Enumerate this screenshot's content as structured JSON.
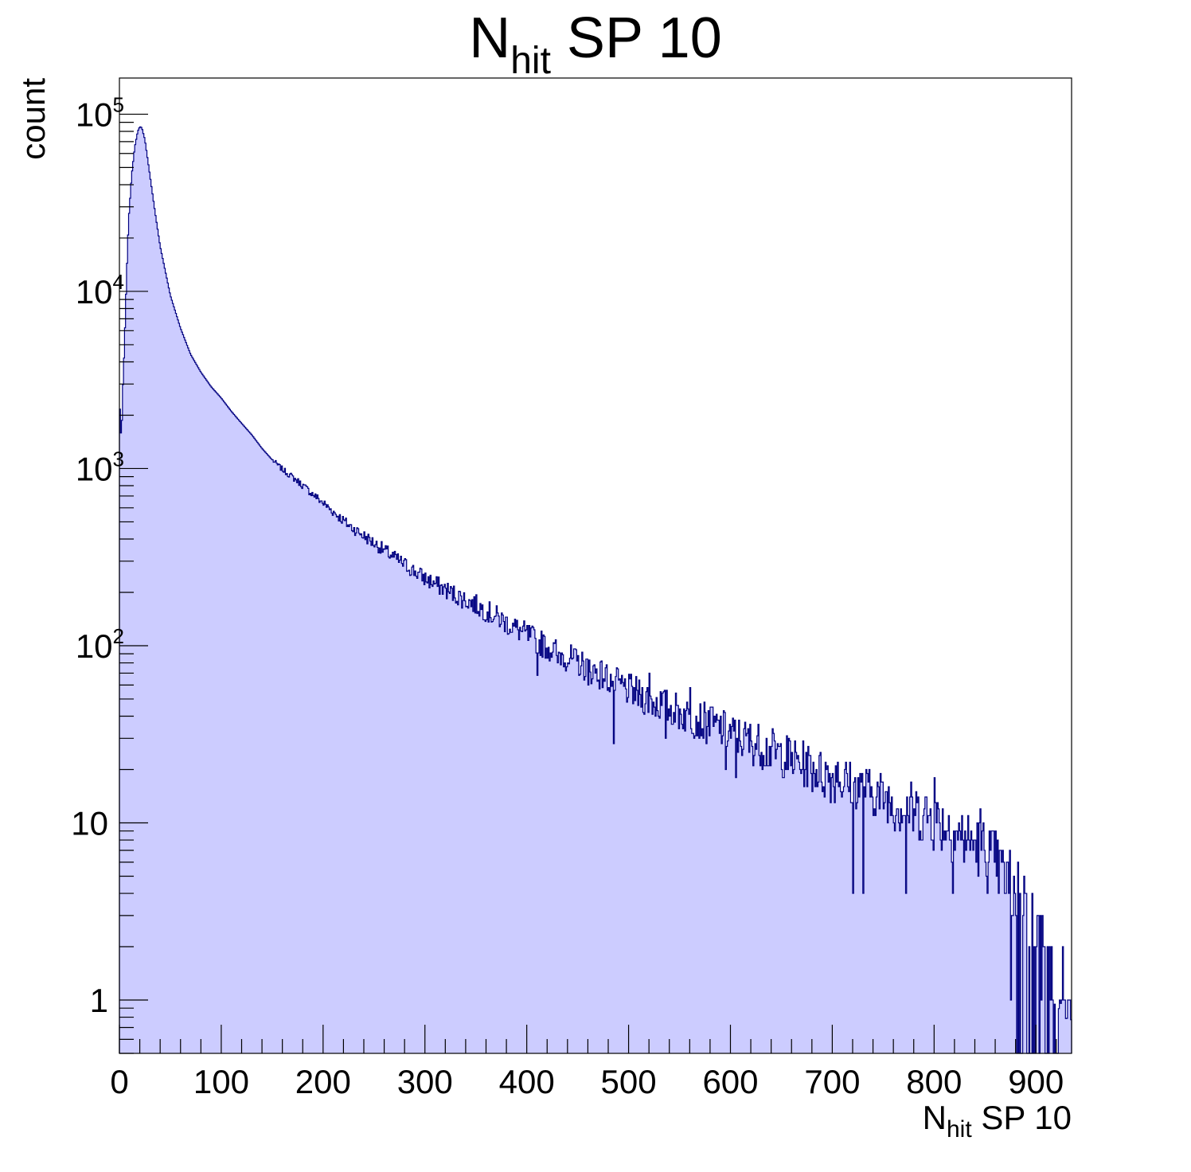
{
  "chart_data": {
    "type": "histogram",
    "title": {
      "main": "N",
      "sub": "hit",
      "rest": " SP 10"
    },
    "xlabel": {
      "main": "N",
      "sub": "hit",
      "rest": " SP 10"
    },
    "ylabel": "count",
    "xlim": [
      0,
      935
    ],
    "ylim": [
      0.5,
      160000
    ],
    "yscale": "log",
    "grid": false,
    "fill_color": "#ccccff",
    "line_color": "#000080",
    "x_ticks": [
      {
        "value": 0,
        "label": "0"
      },
      {
        "value": 100,
        "label": "100"
      },
      {
        "value": 200,
        "label": "200"
      },
      {
        "value": 300,
        "label": "300"
      },
      {
        "value": 400,
        "label": "400"
      },
      {
        "value": 500,
        "label": "500"
      },
      {
        "value": 600,
        "label": "600"
      },
      {
        "value": 700,
        "label": "700"
      },
      {
        "value": 800,
        "label": "800"
      },
      {
        "value": 900,
        "label": "900"
      }
    ],
    "y_ticks": [
      {
        "value": 1,
        "base": "1",
        "exp": ""
      },
      {
        "value": 10,
        "base": "10",
        "exp": ""
      },
      {
        "value": 100,
        "base": "10",
        "exp": "2"
      },
      {
        "value": 1000,
        "base": "10",
        "exp": "3"
      },
      {
        "value": 10000,
        "base": "10",
        "exp": "4"
      },
      {
        "value": 100000,
        "base": "10",
        "exp": "5"
      }
    ],
    "bin_width": 1,
    "shape_nodes": [
      [
        0,
        2600
      ],
      [
        1,
        1800
      ],
      [
        2,
        1400
      ],
      [
        3,
        2500
      ],
      [
        5,
        5000
      ],
      [
        7,
        12000
      ],
      [
        9,
        25000
      ],
      [
        12,
        45000
      ],
      [
        15,
        65000
      ],
      [
        18,
        80000
      ],
      [
        20,
        85000
      ],
      [
        22,
        84000
      ],
      [
        25,
        72000
      ],
      [
        30,
        45000
      ],
      [
        35,
        28000
      ],
      [
        40,
        18000
      ],
      [
        50,
        9500
      ],
      [
        60,
        6200
      ],
      [
        70,
        4400
      ],
      [
        80,
        3500
      ],
      [
        90,
        2900
      ],
      [
        100,
        2500
      ],
      [
        110,
        2100
      ],
      [
        120,
        1800
      ],
      [
        130,
        1550
      ],
      [
        140,
        1300
      ],
      [
        150,
        1120
      ],
      [
        160,
        990
      ],
      [
        175,
        850
      ],
      [
        200,
        640
      ],
      [
        225,
        480
      ],
      [
        250,
        380
      ],
      [
        275,
        300
      ],
      [
        300,
        240
      ],
      [
        325,
        200
      ],
      [
        350,
        170
      ],
      [
        375,
        140
      ],
      [
        400,
        115
      ],
      [
        425,
        95
      ],
      [
        450,
        80
      ],
      [
        475,
        68
      ],
      [
        500,
        56
      ],
      [
        525,
        48
      ],
      [
        550,
        42
      ],
      [
        575,
        37
      ],
      [
        600,
        32
      ],
      [
        625,
        28
      ],
      [
        650,
        24
      ],
      [
        675,
        21
      ],
      [
        700,
        18
      ],
      [
        725,
        16
      ],
      [
        750,
        14
      ],
      [
        775,
        12
      ],
      [
        800,
        10.5
      ],
      [
        825,
        8.5
      ],
      [
        850,
        7
      ],
      [
        870,
        5
      ],
      [
        890,
        4
      ],
      [
        900,
        2.5
      ],
      [
        915,
        1.6
      ],
      [
        935,
        1
      ]
    ],
    "bin_overrides": [
      [
        485,
        28
      ],
      [
        875,
        1
      ],
      [
        720,
        4
      ],
      [
        730,
        4
      ],
      [
        772,
        4
      ],
      [
        818,
        4
      ],
      [
        852,
        4
      ],
      [
        536,
        30
      ],
      [
        595,
        20
      ],
      [
        605,
        18
      ],
      [
        650,
        20
      ],
      [
        705,
        22
      ],
      [
        560,
        58
      ],
      [
        520,
        70
      ],
      [
        800,
        18
      ],
      [
        845,
        12
      ],
      [
        580,
        45
      ],
      [
        460,
        60
      ],
      [
        430,
        80
      ],
      [
        410,
        68
      ]
    ],
    "noise_seed": 7,
    "noise_start": 150
  }
}
